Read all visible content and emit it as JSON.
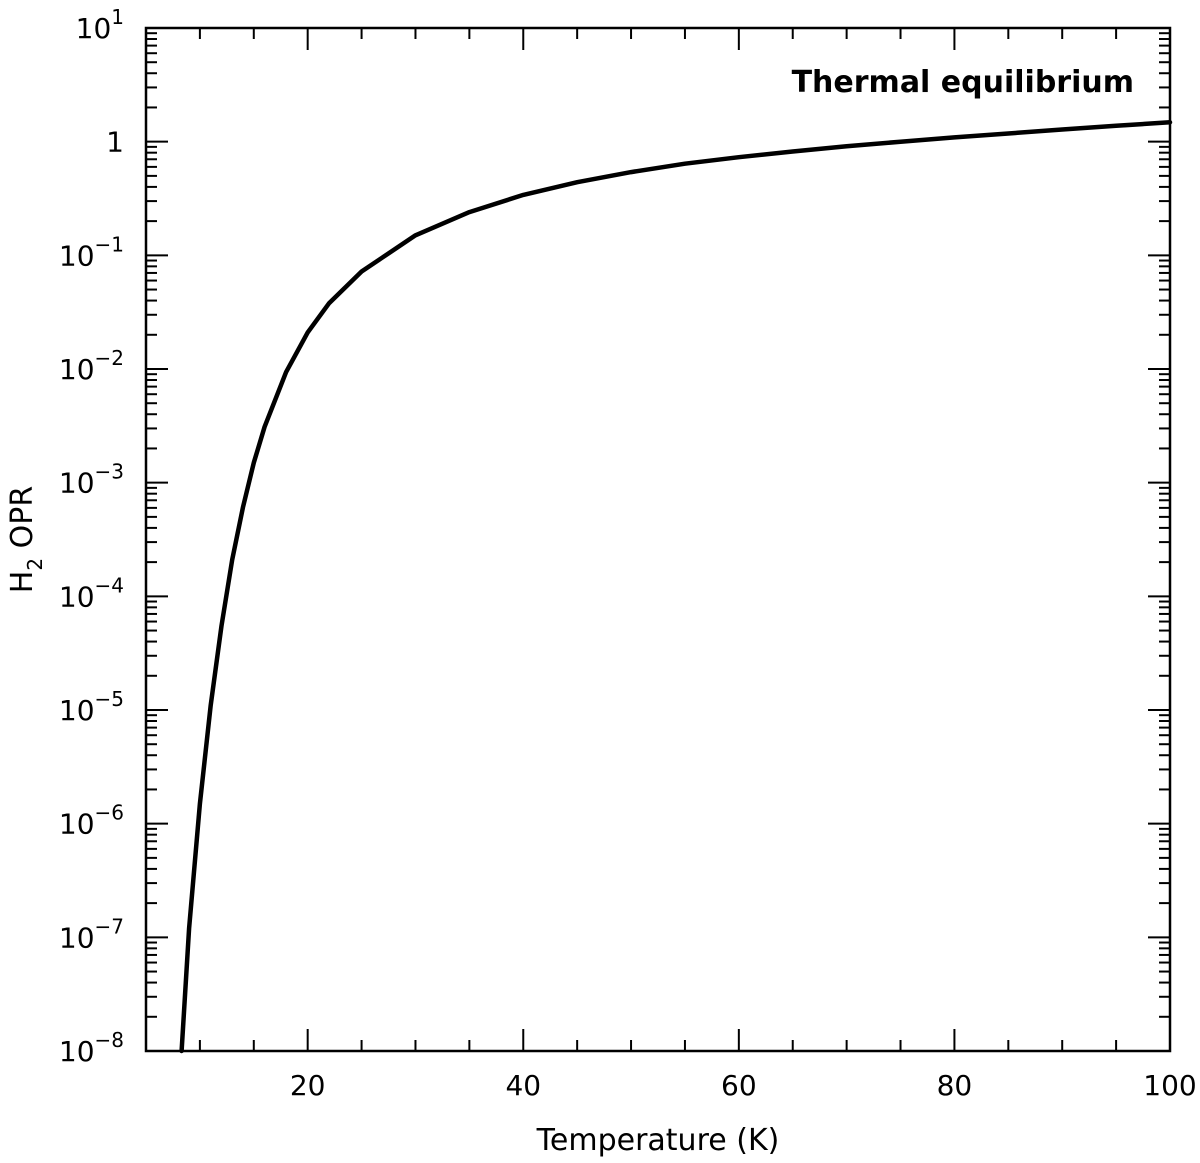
{
  "chart_data": {
    "type": "line",
    "title": "",
    "xlabel": "Temperature (K)",
    "ylabel_main": "H",
    "ylabel_sub": "2",
    "ylabel_rest": " OPR",
    "annotation": "Thermal equilibrium",
    "xlim": [
      5,
      100
    ],
    "ylim_log10": [
      -8,
      1
    ],
    "y_scale": "log",
    "x_ticks": [
      20,
      40,
      60,
      80,
      100
    ],
    "x_tick_labels": [
      "20",
      "40",
      "60",
      "80",
      "100"
    ],
    "y_ticks": [
      {
        "value_log10": 1,
        "base": "10",
        "exp": "1"
      },
      {
        "value_log10": 0,
        "base": "1",
        "exp": ""
      },
      {
        "value_log10": -1,
        "base": "10",
        "exp": "−1"
      },
      {
        "value_log10": -2,
        "base": "10",
        "exp": "−2"
      },
      {
        "value_log10": -3,
        "base": "10",
        "exp": "−3"
      },
      {
        "value_log10": -4,
        "base": "10",
        "exp": "−4"
      },
      {
        "value_log10": -5,
        "base": "10",
        "exp": "−5"
      },
      {
        "value_log10": -6,
        "base": "10",
        "exp": "−6"
      },
      {
        "value_log10": -7,
        "base": "10",
        "exp": "−7"
      },
      {
        "value_log10": -8,
        "base": "10",
        "exp": "−8"
      }
    ],
    "series": [
      {
        "x": [
          8.3,
          9,
          10,
          11,
          12,
          13,
          14,
          15,
          16,
          18,
          20,
          22,
          25,
          30,
          35,
          40,
          45,
          50,
          55,
          60,
          65,
          70,
          75,
          80,
          85,
          90,
          95,
          100
        ],
        "y": [
          1e-08,
          1.2e-07,
          1.5e-06,
          1.1e-05,
          5.5e-05,
          0.00021,
          0.00061,
          0.0015,
          0.0031,
          0.0094,
          0.021,
          0.038,
          0.072,
          0.15,
          0.24,
          0.34,
          0.44,
          0.54,
          0.64,
          0.73,
          0.82,
          0.91,
          1.0,
          1.09,
          1.18,
          1.28,
          1.38,
          1.48
        ]
      }
    ]
  }
}
